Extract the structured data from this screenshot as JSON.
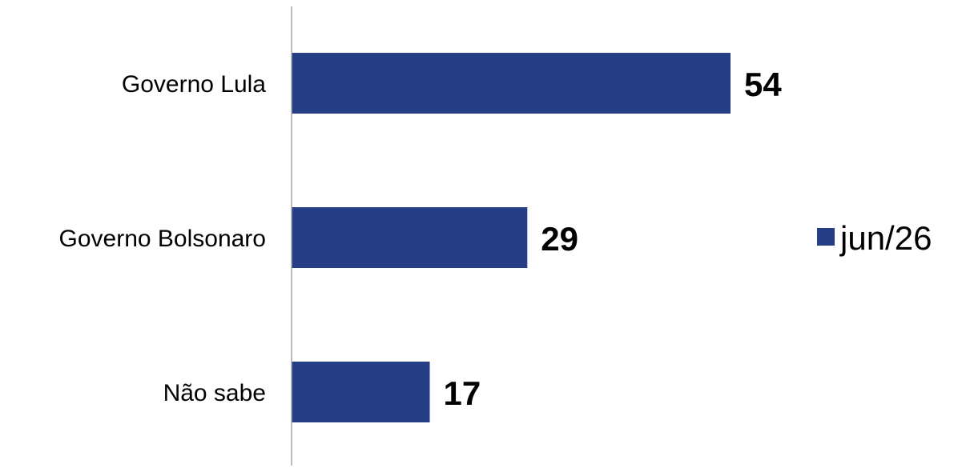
{
  "chart_data": {
    "type": "bar",
    "orientation": "horizontal",
    "categories": [
      "Governo Lula",
      "Governo Bolsonaro",
      "Não sabe"
    ],
    "series": [
      {
        "name": "jun/26",
        "values": [
          54,
          29,
          17
        ],
        "color": "#263E86"
      }
    ],
    "data_labels": [
      "54",
      "29",
      "17"
    ],
    "legend_position": "right",
    "grid": false
  },
  "colors": {
    "bar": "#263E86",
    "axis": "#A6A6A6",
    "text": "#000000"
  }
}
